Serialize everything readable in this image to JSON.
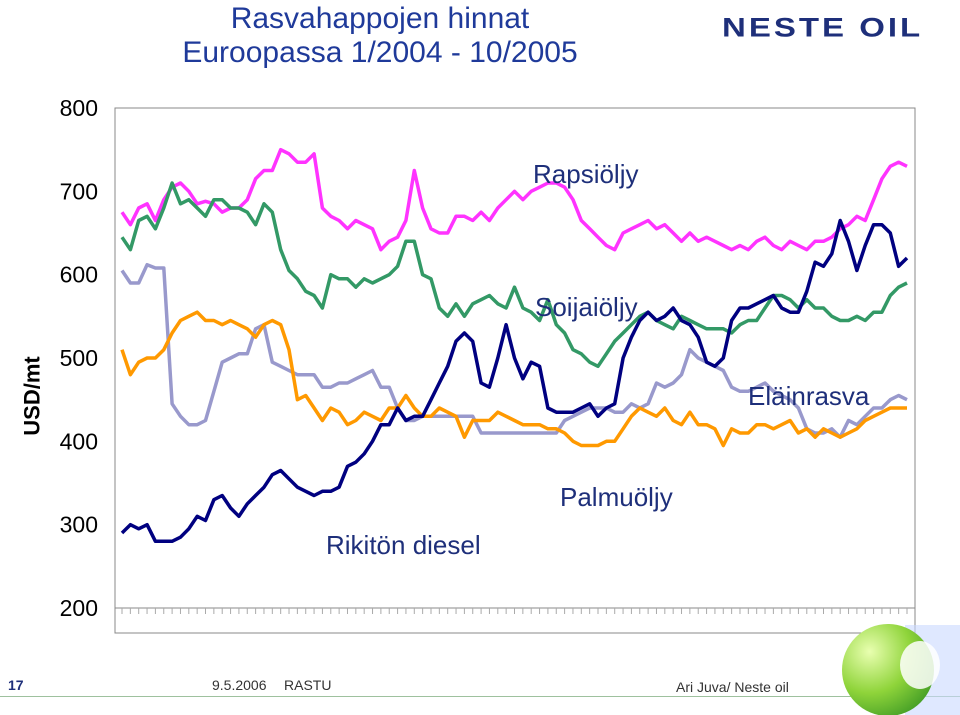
{
  "slide": {
    "title_line1": "Rasvahappojen hinnat",
    "title_line2": "Euroopassa 1/2004 - 10/2005",
    "logo_text": "NESTE OIL",
    "page_number": "17",
    "date": "9.5.2006",
    "event": "RASTU",
    "author": "Ari Juva/ Neste oil"
  },
  "colors": {
    "title": "#1f3a9a",
    "Rapsiöljy": "#ff33ff",
    "Soijaiöljy": "#339966",
    "Eläinrasva": "#9999cc",
    "Palmuöljy": "#ff9900",
    "Rikitön diesel": "#000080"
  },
  "chart_data": {
    "type": "line",
    "title": "",
    "ylabel": "USD/mt",
    "xlabel": "",
    "ylim": [
      200,
      800
    ],
    "yticks": [
      "200",
      "300",
      "400",
      "500",
      "600",
      "700",
      "800"
    ],
    "grid": false,
    "n_points": 95,
    "series": [
      {
        "name": "Rapsiöljy",
        "label_text": "Rapsiöljy",
        "color": "#ff33ff",
        "values": [
          675,
          660,
          680,
          685,
          665,
          690,
          705,
          710,
          700,
          685,
          688,
          685,
          675,
          680,
          680,
          690,
          715,
          725,
          725,
          750,
          745,
          735,
          735,
          745,
          680,
          670,
          665,
          655,
          665,
          660,
          655,
          630,
          640,
          645,
          665,
          725,
          680,
          655,
          650,
          650,
          670,
          670,
          665,
          675,
          665,
          680,
          690,
          700,
          690,
          700,
          705,
          710,
          710,
          705,
          690,
          665,
          655,
          645,
          635,
          630,
          650,
          655,
          660,
          665,
          655,
          660,
          650,
          640,
          650,
          640,
          645,
          640,
          635,
          630,
          635,
          630,
          640,
          645,
          635,
          630,
          640,
          635,
          630,
          640,
          640,
          645,
          655,
          660,
          670,
          665,
          690,
          715,
          730,
          735,
          730
        ]
      },
      {
        "name": "Soijaiöljy",
        "label_text": "Soijaiöljy",
        "color": "#339966",
        "values": [
          645,
          630,
          665,
          670,
          655,
          680,
          710,
          685,
          690,
          680,
          670,
          690,
          690,
          680,
          680,
          675,
          660,
          685,
          675,
          630,
          605,
          595,
          580,
          575,
          560,
          600,
          595,
          595,
          585,
          595,
          590,
          595,
          600,
          610,
          640,
          640,
          600,
          595,
          560,
          550,
          565,
          550,
          565,
          570,
          575,
          565,
          560,
          585,
          560,
          555,
          545,
          570,
          540,
          530,
          510,
          505,
          495,
          490,
          505,
          520,
          530,
          540,
          550,
          555,
          545,
          540,
          535,
          550,
          545,
          540,
          535,
          535,
          535,
          530,
          540,
          545,
          545,
          560,
          575,
          575,
          570,
          560,
          570,
          560,
          560,
          550,
          545,
          545,
          550,
          545,
          555,
          555,
          575,
          585,
          590
        ]
      },
      {
        "name": "Eläinrasva",
        "label_text": "Eläinrasva",
        "color": "#9999cc",
        "values": [
          605,
          590,
          590,
          612,
          608,
          608,
          445,
          430,
          420,
          420,
          425,
          460,
          495,
          500,
          505,
          505,
          535,
          540,
          495,
          490,
          485,
          480,
          480,
          480,
          465,
          465,
          470,
          470,
          475,
          480,
          485,
          465,
          465,
          440,
          425,
          425,
          430,
          430,
          430,
          430,
          430,
          430,
          430,
          410,
          410,
          410,
          410,
          410,
          410,
          410,
          410,
          410,
          410,
          425,
          430,
          435,
          440,
          440,
          440,
          435,
          435,
          445,
          440,
          445,
          470,
          465,
          470,
          480,
          510,
          500,
          495,
          490,
          485,
          465,
          460,
          460,
          465,
          470,
          460,
          455,
          450,
          440,
          415,
          410,
          410,
          415,
          405,
          425,
          420,
          430,
          440,
          440,
          450,
          455,
          450
        ]
      },
      {
        "name": "Palmuöljy",
        "label_text": "Palmuöljy",
        "color": "#ff9900",
        "values": [
          510,
          480,
          495,
          500,
          500,
          510,
          530,
          545,
          550,
          555,
          545,
          545,
          540,
          545,
          540,
          535,
          525,
          540,
          545,
          540,
          510,
          450,
          455,
          440,
          425,
          440,
          435,
          420,
          425,
          435,
          430,
          425,
          440,
          440,
          455,
          440,
          430,
          430,
          440,
          435,
          430,
          405,
          425,
          425,
          425,
          435,
          430,
          425,
          420,
          420,
          420,
          415,
          415,
          410,
          400,
          395,
          395,
          395,
          400,
          400,
          415,
          430,
          440,
          435,
          430,
          440,
          425,
          420,
          435,
          420,
          420,
          415,
          395,
          415,
          410,
          410,
          420,
          420,
          415,
          420,
          425,
          410,
          415,
          405,
          415,
          410,
          405,
          410,
          415,
          425,
          430,
          435,
          440,
          440,
          440
        ]
      },
      {
        "name": "Rikitön diesel",
        "label_text": "Rikitön diesel",
        "color": "#000080",
        "values": [
          290,
          300,
          295,
          300,
          280,
          280,
          280,
          285,
          295,
          310,
          305,
          330,
          335,
          320,
          310,
          325,
          335,
          345,
          360,
          365,
          355,
          345,
          340,
          335,
          340,
          340,
          345,
          370,
          375,
          385,
          400,
          420,
          420,
          440,
          425,
          430,
          430,
          450,
          470,
          490,
          520,
          530,
          520,
          470,
          465,
          500,
          540,
          500,
          475,
          495,
          490,
          440,
          435,
          435,
          435,
          440,
          445,
          430,
          440,
          445,
          500,
          525,
          545,
          555,
          545,
          550,
          560,
          545,
          540,
          525,
          495,
          490,
          500,
          545,
          560,
          560,
          565,
          570,
          575,
          560,
          555,
          555,
          580,
          615,
          610,
          625,
          665,
          640,
          605,
          635,
          660,
          660,
          650,
          610,
          620
        ]
      }
    ]
  }
}
